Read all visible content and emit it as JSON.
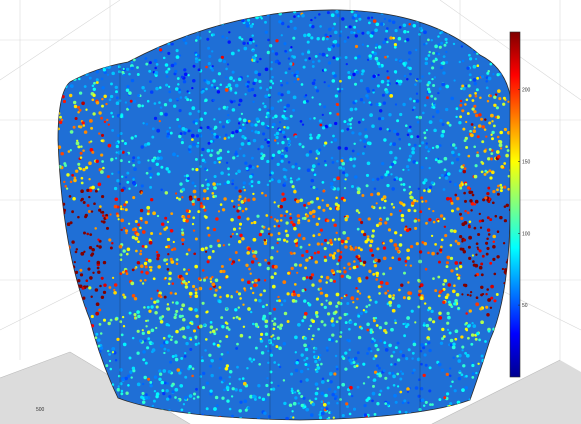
{
  "chart_data": {
    "type": "scatter",
    "subtype": "3d-point-cloud",
    "title": "",
    "xlabel": "",
    "ylabel": "",
    "zlabel": "",
    "grid": true,
    "colormap": "jet",
    "colorbar": {
      "placement": "right",
      "range": [
        0,
        240
      ],
      "ticks": [
        "50",
        "100",
        "150",
        "200"
      ]
    },
    "axis_tick_labels": [
      "500"
    ],
    "colors": {
      "background": "#ffffff",
      "grid": "#d9d9d9",
      "floor": "#dcdcdc",
      "outline": "#2a2a2a"
    }
  }
}
